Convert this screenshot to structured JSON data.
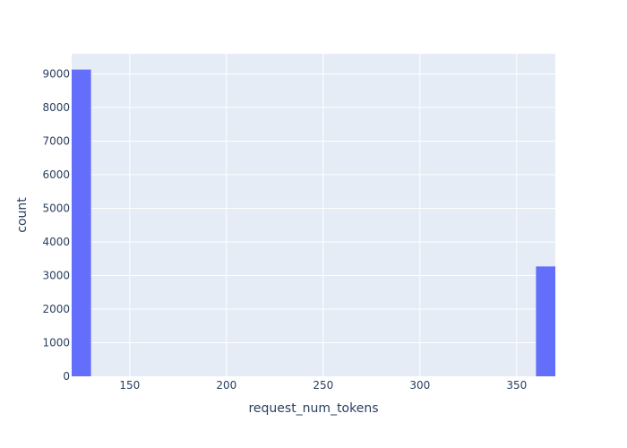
{
  "chart_data": {
    "type": "bar",
    "subtype": "histogram",
    "title": "",
    "xlabel": "request_num_tokens",
    "ylabel": "count",
    "xlim": [
      120,
      370
    ],
    "ylim": [
      0,
      9600
    ],
    "x_ticks": [
      150,
      200,
      250,
      300,
      350
    ],
    "y_ticks": [
      0,
      1000,
      2000,
      3000,
      4000,
      5000,
      6000,
      7000,
      8000,
      9000
    ],
    "bins": [
      {
        "x0": 120,
        "x1": 130,
        "count": 9130
      },
      {
        "x0": 360,
        "x1": 370,
        "count": 3270
      }
    ],
    "grid": true,
    "colors": {
      "bar": "#636efa",
      "plot_bg": "#e5ecf6",
      "grid": "#ffffff",
      "text": "#2a3f5f"
    }
  }
}
